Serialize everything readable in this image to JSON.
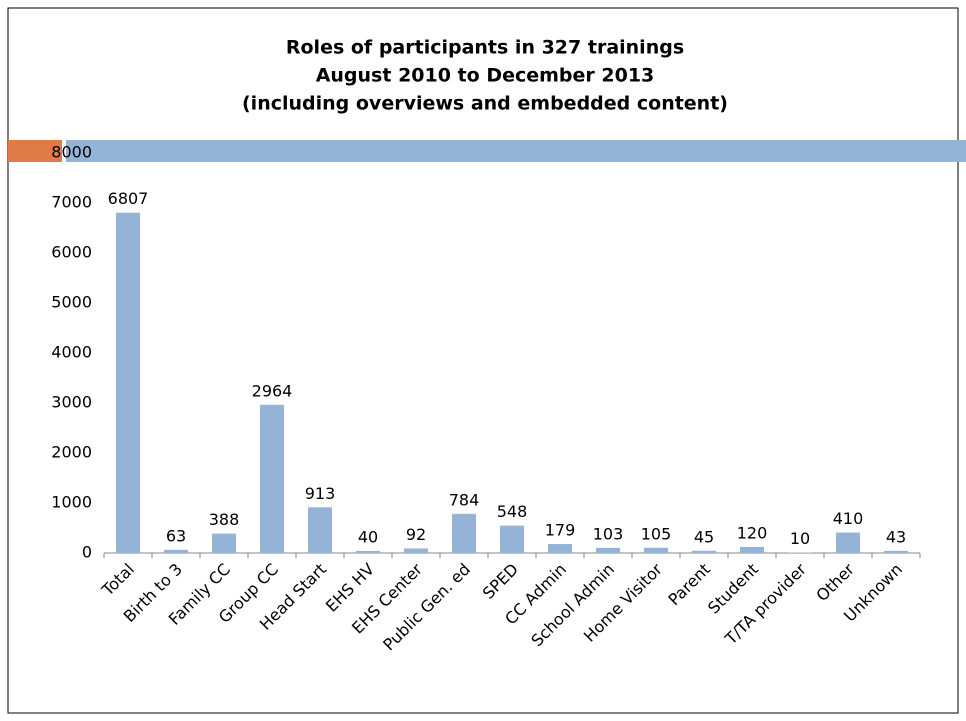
{
  "chart_data": {
    "type": "bar",
    "title": [
      "Roles of participants in 327 trainings",
      "August 2010 to December 2013",
      "(including overviews and embedded content)"
    ],
    "categories": [
      "Total",
      "Birth to 3",
      "Family CC",
      "Group CC",
      "Head Start",
      "EHS HV",
      "EHS Center",
      "Public Gen. ed",
      "SPED",
      "CC Admin",
      "School Admin",
      "Home Visitor",
      "Parent",
      "Student",
      "T/TA provider",
      "Other",
      "Unknown"
    ],
    "values": [
      6807,
      63,
      388,
      2964,
      913,
      40,
      92,
      784,
      548,
      179,
      103,
      105,
      45,
      120,
      10,
      410,
      43
    ],
    "color": "#95b3d7",
    "ylim": [
      0,
      8000
    ],
    "yticks": [
      0,
      1000,
      2000,
      3000,
      4000,
      5000,
      6000,
      7000,
      8000
    ],
    "grid": false
  }
}
